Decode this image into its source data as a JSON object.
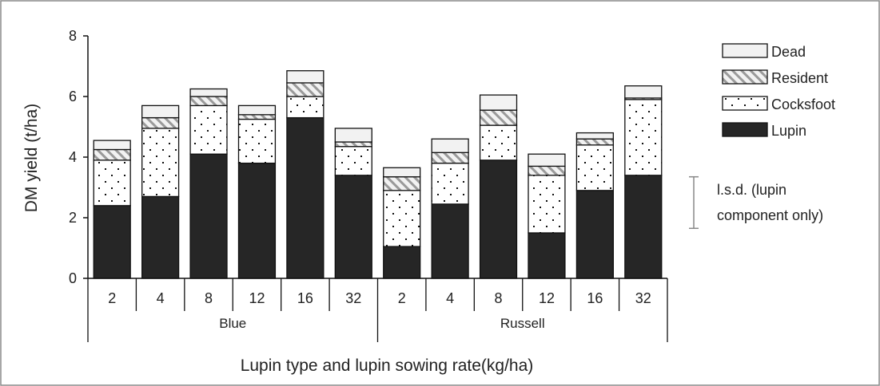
{
  "chart_data": {
    "type": "bar",
    "stacked": true,
    "ylabel": "DM yield (t/ha)",
    "xlabel": "Lupin type and lupin sowing rate(kg/ha)",
    "ylim": [
      0,
      8
    ],
    "yticks": [
      "0",
      "2",
      "4",
      "6",
      "8"
    ],
    "groups": [
      {
        "name": "Blue",
        "categories": [
          "2",
          "4",
          "8",
          "12",
          "16",
          "32"
        ]
      },
      {
        "name": "Russell",
        "categories": [
          "2",
          "4",
          "8",
          "12",
          "16",
          "32"
        ]
      }
    ],
    "series": [
      {
        "name": "Lupin",
        "pattern": "solid-dark",
        "values": [
          2.4,
          2.7,
          4.1,
          3.8,
          5.3,
          3.4,
          1.05,
          2.45,
          3.9,
          1.5,
          2.9,
          3.4
        ]
      },
      {
        "name": "Cocksfoot",
        "pattern": "dots",
        "values": [
          1.5,
          2.25,
          1.6,
          1.45,
          0.7,
          0.95,
          1.85,
          1.35,
          1.15,
          1.9,
          1.5,
          2.5
        ]
      },
      {
        "name": "Resident",
        "pattern": "diagonal-hatch",
        "values": [
          0.35,
          0.35,
          0.3,
          0.15,
          0.45,
          0.15,
          0.45,
          0.35,
          0.5,
          0.3,
          0.2,
          0.05
        ]
      },
      {
        "name": "Dead",
        "pattern": "light",
        "values": [
          0.3,
          0.4,
          0.25,
          0.3,
          0.4,
          0.45,
          0.3,
          0.45,
          0.5,
          0.4,
          0.2,
          0.4
        ]
      }
    ],
    "legend": {
      "placement": "top-right",
      "order": [
        "Dead",
        "Resident",
        "Cocksfoot",
        "Lupin"
      ]
    },
    "lsd": {
      "label_line1": "l.s.d. (lupin",
      "label_line2": "component only)",
      "low": 1.65,
      "high": 3.35
    },
    "grid": false
  },
  "colors": {
    "lupin": "#262626",
    "cocksfoot": "#ffffff",
    "resident": "#f2f2f2",
    "hatch": "#9a9a9a",
    "dead": "#f2f2f2",
    "outline": "#111111",
    "lsd": "#888888"
  }
}
